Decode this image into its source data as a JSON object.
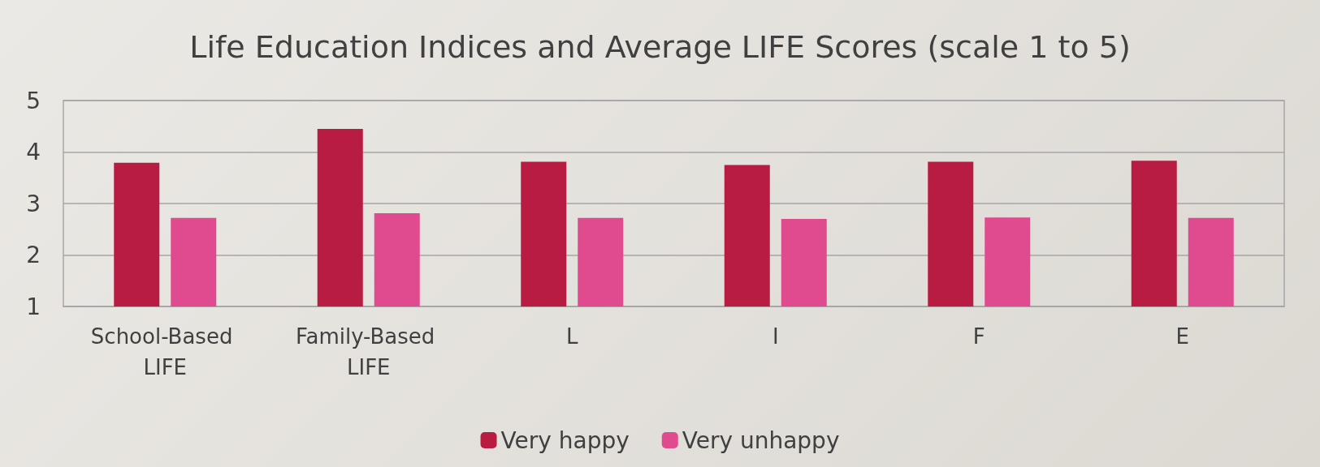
{
  "chart_data": {
    "type": "bar",
    "title": "Life Education Indices and Average LIFE Scores (scale 1 to 5)",
    "categories": [
      "School-Based LIFE",
      "Family-Based LIFE",
      "L",
      "I",
      "F",
      "E"
    ],
    "series": [
      {
        "name": "Very happy",
        "color": "#b91c42",
        "values": [
          3.79,
          4.45,
          3.81,
          3.75,
          3.81,
          3.83
        ]
      },
      {
        "name": "Very unhappy",
        "color": "#e04a8f",
        "values": [
          2.72,
          2.81,
          2.72,
          2.7,
          2.73,
          2.72
        ]
      }
    ],
    "ylim": [
      1,
      5
    ],
    "yticks": [
      1,
      2,
      3,
      4,
      5
    ],
    "grid": "y",
    "legend": "bottom"
  }
}
